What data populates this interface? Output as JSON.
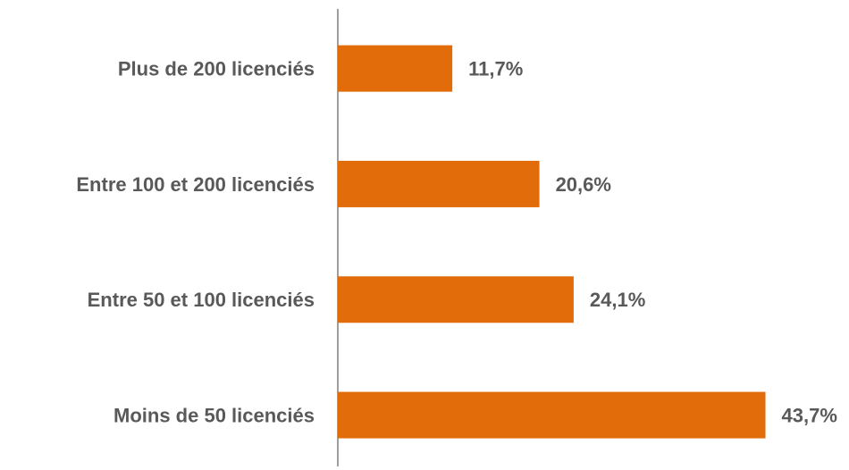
{
  "chart_data": {
    "type": "bar",
    "orientation": "horizontal",
    "categories": [
      "Plus de 200 licenciés",
      "Entre 100 et 200 licenciés",
      "Entre 50 et 100 licenciés",
      "Moins de 50 licenciés"
    ],
    "values": [
      11.7,
      20.6,
      24.1,
      43.7
    ],
    "value_labels": [
      "11,7%",
      "20,6%",
      "24,1%",
      "43,7%"
    ],
    "color": "#e36c0a"
  }
}
